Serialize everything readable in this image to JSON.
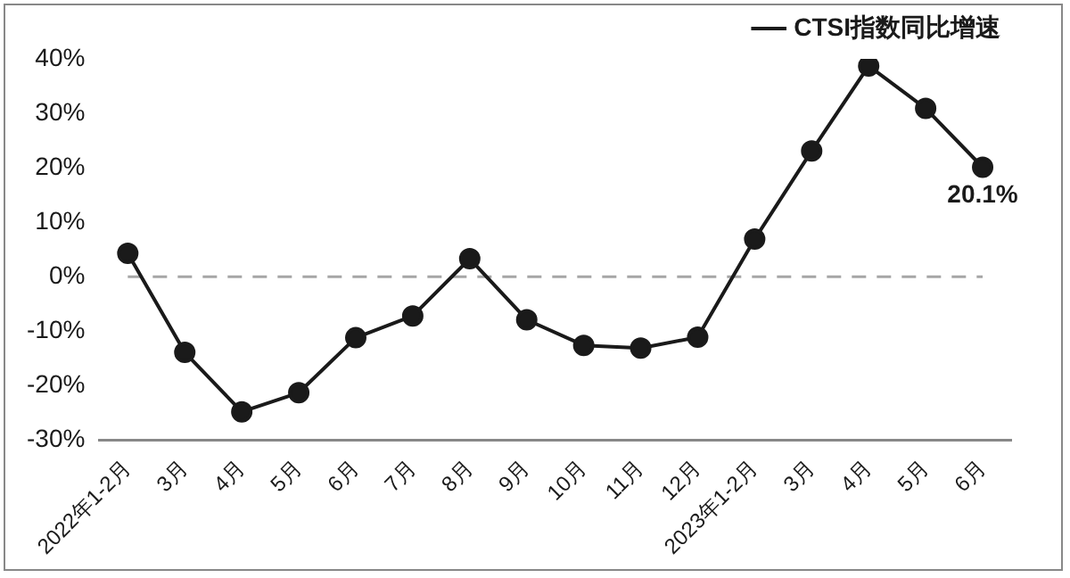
{
  "chart_data": {
    "type": "line",
    "categories": [
      "2022年1-2月",
      "3月",
      "4月",
      "5月",
      "6月",
      "7月",
      "8月",
      "9月",
      "10月",
      "11月",
      "12月",
      "2023年1-2月",
      "3月",
      "4月",
      "5月",
      "6月"
    ],
    "series": [
      {
        "name": "CTSI指数同比增速",
        "color": "#1a1a1a",
        "values": [
          4.3,
          -13.9,
          -24.8,
          -21.3,
          -11.2,
          -7.2,
          3.3,
          -7.9,
          -12.6,
          -13.1,
          -11.1,
          6.9,
          23.1,
          38.7,
          30.9,
          20.1
        ],
        "value_labels": [
          null,
          null,
          null,
          null,
          null,
          null,
          null,
          null,
          null,
          null,
          null,
          null,
          null,
          null,
          null,
          "20.1%"
        ]
      }
    ],
    "ylim": [
      -30,
      40
    ],
    "yticks": [
      {
        "value": -30,
        "label": "-30%"
      },
      {
        "value": -20,
        "label": "-20%"
      },
      {
        "value": -10,
        "label": "-10%"
      },
      {
        "value": 0,
        "label": "0%"
      },
      {
        "value": 10,
        "label": "10%"
      },
      {
        "value": 20,
        "label": "20%"
      },
      {
        "value": 30,
        "label": "30%"
      },
      {
        "value": 40,
        "label": "40%"
      }
    ],
    "ref_lines": [
      {
        "axis": "y",
        "value": 0,
        "color": "#a6a6a6",
        "line_style": "dashed"
      }
    ],
    "grid": false,
    "legend": "top",
    "marker": "circle",
    "line_style": "solid"
  }
}
